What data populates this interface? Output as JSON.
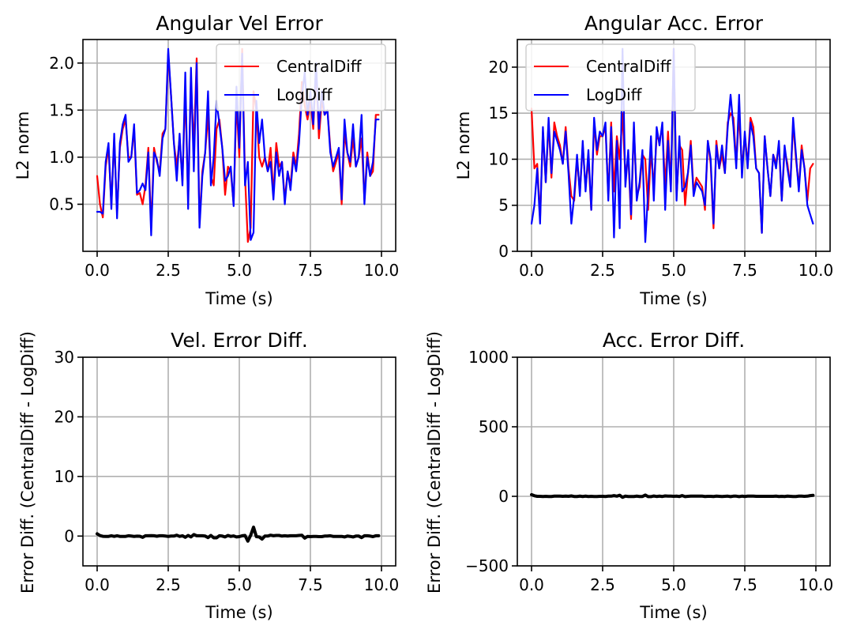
{
  "chart_data": [
    {
      "type": "line",
      "title": "Angular Vel Error",
      "xlabel": "Time (s)",
      "ylabel": "L2 norm",
      "xlim": [
        -0.5,
        10.5
      ],
      "ylim": [
        0.0,
        2.25
      ],
      "xticks": [
        0.0,
        2.5,
        5.0,
        7.5,
        10.0
      ],
      "xtick_labels": [
        "0.0",
        "2.5",
        "5.0",
        "7.5",
        "10.0"
      ],
      "yticks": [
        0.5,
        1.0,
        1.5,
        2.0
      ],
      "ytick_labels": [
        "0.5",
        "1.0",
        "1.5",
        "2.0"
      ],
      "grid": true,
      "legend": "top-right",
      "x": [
        0.0,
        0.1,
        0.2,
        0.3,
        0.4,
        0.5,
        0.6,
        0.7,
        0.8,
        0.9,
        1.0,
        1.1,
        1.2,
        1.3,
        1.4,
        1.5,
        1.6,
        1.7,
        1.8,
        1.9,
        2.0,
        2.1,
        2.2,
        2.3,
        2.4,
        2.5,
        2.6,
        2.7,
        2.8,
        2.9,
        3.0,
        3.1,
        3.2,
        3.3,
        3.4,
        3.5,
        3.6,
        3.7,
        3.8,
        3.9,
        4.0,
        4.1,
        4.2,
        4.3,
        4.4,
        4.5,
        4.6,
        4.7,
        4.8,
        4.9,
        5.0,
        5.1,
        5.2,
        5.3,
        5.4,
        5.5,
        5.6,
        5.7,
        5.8,
        5.9,
        6.0,
        6.1,
        6.2,
        6.3,
        6.4,
        6.5,
        6.6,
        6.7,
        6.8,
        6.9,
        7.0,
        7.1,
        7.2,
        7.3,
        7.4,
        7.5,
        7.6,
        7.7,
        7.8,
        7.9,
        8.0,
        8.1,
        8.2,
        8.3,
        8.4,
        8.5,
        8.6,
        8.7,
        8.8,
        8.9,
        9.0,
        9.1,
        9.2,
        9.3,
        9.4,
        9.5,
        9.6,
        9.7,
        9.8,
        9.9
      ],
      "series": [
        {
          "name": "CentralDiff",
          "color": "#ff0000",
          "values": [
            0.8,
            0.5,
            0.36,
            0.9,
            1.1,
            0.5,
            1.2,
            0.4,
            1.1,
            1.3,
            1.4,
            1.0,
            1.0,
            1.3,
            0.6,
            0.62,
            0.5,
            0.7,
            1.1,
            0.25,
            1.1,
            0.95,
            0.85,
            1.25,
            1.3,
            2.1,
            1.65,
            1.15,
            0.9,
            1.2,
            0.75,
            1.7,
            0.55,
            1.8,
            1.1,
            2.05,
            0.3,
            0.85,
            1.05,
            1.45,
            0.8,
            0.7,
            1.3,
            1.4,
            1.1,
            0.6,
            0.9,
            0.85,
            0.5,
            1.6,
            1.0,
            2.15,
            0.8,
            0.1,
            0.25,
            1.7,
            1.5,
            1.0,
            0.9,
            1.0,
            0.85,
            1.1,
            0.6,
            1.15,
            0.9,
            0.95,
            0.55,
            0.85,
            0.7,
            1.05,
            0.9,
            1.25,
            1.8,
            1.55,
            1.4,
            1.6,
            1.3,
            1.95,
            1.2,
            1.6,
            1.45,
            1.5,
            1.1,
            0.85,
            0.95,
            1.05,
            0.5,
            1.25,
            1.05,
            0.9,
            1.2,
            0.9,
            1.0,
            1.2,
            0.55,
            1.05,
            0.8,
            0.85,
            1.45,
            1.45
          ]
        },
        {
          "name": "LogDiff",
          "color": "#0000ff",
          "values": [
            0.42,
            0.42,
            0.4,
            0.95,
            1.15,
            0.45,
            1.25,
            0.35,
            1.15,
            1.35,
            1.45,
            0.95,
            1.0,
            1.35,
            0.62,
            0.65,
            0.72,
            0.65,
            1.05,
            0.17,
            1.05,
            0.98,
            0.8,
            1.2,
            1.3,
            2.15,
            1.65,
            1.15,
            0.75,
            1.25,
            0.7,
            1.9,
            0.45,
            1.95,
            0.85,
            2.0,
            0.25,
            0.8,
            1.05,
            1.7,
            0.7,
            1.0,
            1.6,
            1.35,
            1.1,
            0.75,
            0.8,
            0.9,
            0.48,
            1.75,
            1.1,
            2.1,
            0.7,
            0.95,
            0.12,
            0.2,
            1.6,
            1.15,
            1.4,
            1.0,
            0.85,
            0.95,
            0.55,
            1.05,
            0.8,
            0.95,
            0.5,
            0.85,
            0.65,
            1.0,
            0.85,
            1.15,
            1.65,
            1.9,
            1.45,
            1.7,
            1.35,
            2.0,
            1.3,
            1.7,
            1.45,
            1.5,
            1.05,
            0.9,
            1.0,
            1.1,
            0.55,
            1.4,
            1.05,
            0.95,
            1.35,
            0.9,
            1.0,
            1.45,
            0.5,
            1.0,
            0.8,
            0.95,
            1.4,
            1.4
          ]
        }
      ]
    },
    {
      "type": "line",
      "title": "Angular Acc. Error",
      "xlabel": "Time (s)",
      "ylabel": "L2 norm",
      "xlim": [
        -0.5,
        10.5
      ],
      "ylim": [
        0,
        23
      ],
      "xticks": [
        0.0,
        2.5,
        5.0,
        7.5,
        10.0
      ],
      "xtick_labels": [
        "0.0",
        "2.5",
        "5.0",
        "7.5",
        "10.0"
      ],
      "yticks": [
        0,
        5,
        10,
        15,
        20
      ],
      "ytick_labels": [
        "0",
        "5",
        "10",
        "15",
        "20"
      ],
      "grid": true,
      "legend": "top-left",
      "x": [
        0.0,
        0.1,
        0.2,
        0.3,
        0.4,
        0.5,
        0.6,
        0.7,
        0.8,
        0.9,
        1.0,
        1.1,
        1.2,
        1.3,
        1.4,
        1.5,
        1.6,
        1.7,
        1.8,
        1.9,
        2.0,
        2.1,
        2.2,
        2.3,
        2.4,
        2.5,
        2.6,
        2.7,
        2.8,
        2.9,
        3.0,
        3.1,
        3.2,
        3.3,
        3.4,
        3.5,
        3.6,
        3.7,
        3.8,
        3.9,
        4.0,
        4.1,
        4.2,
        4.3,
        4.4,
        4.5,
        4.6,
        4.7,
        4.8,
        4.9,
        5.0,
        5.1,
        5.2,
        5.3,
        5.4,
        5.5,
        5.6,
        5.7,
        5.8,
        5.9,
        6.0,
        6.1,
        6.2,
        6.3,
        6.4,
        6.5,
        6.6,
        6.7,
        6.8,
        6.9,
        7.0,
        7.1,
        7.2,
        7.3,
        7.4,
        7.5,
        7.6,
        7.7,
        7.8,
        7.9,
        8.0,
        8.1,
        8.2,
        8.3,
        8.4,
        8.5,
        8.6,
        8.7,
        8.8,
        8.9,
        9.0,
        9.1,
        9.2,
        9.3,
        9.4,
        9.5,
        9.6,
        9.7,
        9.8,
        9.9
      ],
      "series": [
        {
          "name": "CentralDiff",
          "color": "#ff0000",
          "values": [
            15.5,
            9.0,
            9.5,
            3.5,
            13.0,
            7.5,
            14.0,
            8.0,
            14.0,
            12.5,
            11.5,
            9.5,
            13.5,
            9.0,
            6.0,
            5.5,
            10.0,
            6.5,
            11.5,
            7.0,
            10.0,
            4.5,
            14.0,
            10.5,
            12.5,
            12.5,
            13.5,
            6.0,
            14.0,
            6.5,
            12.5,
            10.0,
            15.0,
            8.0,
            10.5,
            3.5,
            13.5,
            6.0,
            7.0,
            10.5,
            10.0,
            4.5,
            11.0,
            7.0,
            12.5,
            12.0,
            13.5,
            7.0,
            13.0,
            7.0,
            22.0,
            6.0,
            11.5,
            11.0,
            5.0,
            8.5,
            12.0,
            6.5,
            8.0,
            7.5,
            7.0,
            4.5,
            12.0,
            9.5,
            2.5,
            12.0,
            9.0,
            10.5,
            8.5,
            14.0,
            15.0,
            14.5,
            9.5,
            15.0,
            9.0,
            12.5,
            9.5,
            14.5,
            13.5,
            9.0,
            8.5,
            2.0,
            12.5,
            9.0,
            6.0,
            10.5,
            9.5,
            11.5,
            5.5,
            11.0,
            9.5,
            7.0,
            14.0,
            10.0,
            7.0,
            11.5,
            9.0,
            5.5,
            9.0,
            9.5
          ]
        },
        {
          "name": "LogDiff",
          "color": "#0000ff",
          "values": [
            3.0,
            5.0,
            9.0,
            3.0,
            13.5,
            7.5,
            14.5,
            8.5,
            13.0,
            12.0,
            11.0,
            9.5,
            13.0,
            8.5,
            3.0,
            6.0,
            10.5,
            6.0,
            12.0,
            6.5,
            11.0,
            4.5,
            14.5,
            11.0,
            13.0,
            12.5,
            14.0,
            5.5,
            13.5,
            1.5,
            12.0,
            2.5,
            22.0,
            7.0,
            11.0,
            4.0,
            14.0,
            5.5,
            7.5,
            11.0,
            1.0,
            6.5,
            12.5,
            5.5,
            13.5,
            11.5,
            14.0,
            4.5,
            12.0,
            6.5,
            22.0,
            5.5,
            12.5,
            6.5,
            7.0,
            8.5,
            11.5,
            6.0,
            7.5,
            7.0,
            6.5,
            5.0,
            12.0,
            10.0,
            3.0,
            11.5,
            9.0,
            11.5,
            8.5,
            13.5,
            17.0,
            13.5,
            9.0,
            17.0,
            8.0,
            13.0,
            9.0,
            14.0,
            12.5,
            9.0,
            8.5,
            2.0,
            12.5,
            9.0,
            6.0,
            10.5,
            9.0,
            12.0,
            5.5,
            11.5,
            9.0,
            7.0,
            14.5,
            10.5,
            6.5,
            11.0,
            9.0,
            5.0,
            4.0,
            3.0
          ]
        }
      ]
    },
    {
      "type": "line",
      "title": "Vel. Error Diff.",
      "xlabel": "Time (s)",
      "ylabel": "Error Diff. (CentralDiff - LogDiff)",
      "xlim": [
        -0.5,
        10.5
      ],
      "ylim": [
        -5,
        30
      ],
      "xticks": [
        0.0,
        2.5,
        5.0,
        7.5,
        10.0
      ],
      "xtick_labels": [
        "0.0",
        "2.5",
        "5.0",
        "7.5",
        "10.0"
      ],
      "yticks": [
        0,
        10,
        20,
        30
      ],
      "ytick_labels": [
        "0",
        "10",
        "20",
        "30"
      ],
      "grid": true,
      "x": [
        0.0,
        0.1,
        0.2,
        0.3,
        0.4,
        0.5,
        0.6,
        0.7,
        0.8,
        0.9,
        1.0,
        1.1,
        1.2,
        1.3,
        1.4,
        1.5,
        1.6,
        1.7,
        1.8,
        1.9,
        2.0,
        2.1,
        2.2,
        2.3,
        2.4,
        2.5,
        2.6,
        2.7,
        2.8,
        2.9,
        3.0,
        3.1,
        3.2,
        3.3,
        3.4,
        3.5,
        3.6,
        3.7,
        3.8,
        3.9,
        4.0,
        4.1,
        4.2,
        4.3,
        4.4,
        4.5,
        4.6,
        4.7,
        4.8,
        4.9,
        5.0,
        5.1,
        5.2,
        5.3,
        5.4,
        5.5,
        5.6,
        5.7,
        5.8,
        5.9,
        6.0,
        6.1,
        6.2,
        6.3,
        6.4,
        6.5,
        6.6,
        6.7,
        6.8,
        6.9,
        7.0,
        7.1,
        7.2,
        7.3,
        7.4,
        7.5,
        7.6,
        7.7,
        7.8,
        7.9,
        8.0,
        8.1,
        8.2,
        8.3,
        8.4,
        8.5,
        8.6,
        8.7,
        8.8,
        8.9,
        9.0,
        9.1,
        9.2,
        9.3,
        9.4,
        9.5,
        9.6,
        9.7,
        9.8,
        9.9
      ],
      "series": [
        {
          "name": "CentralDiff - LogDiff",
          "color": "#000000",
          "values": [
            0.38,
            0.08,
            -0.04,
            -0.05,
            -0.05,
            0.05,
            -0.05,
            0.05,
            -0.05,
            -0.05,
            -0.05,
            0.05,
            0.0,
            -0.05,
            -0.02,
            -0.03,
            -0.22,
            0.05,
            0.05,
            0.08,
            0.05,
            -0.03,
            0.05,
            0.05,
            0.0,
            -0.05,
            0.0,
            0.0,
            0.15,
            -0.05,
            0.05,
            -0.2,
            0.1,
            -0.15,
            0.25,
            0.05,
            0.05,
            0.05,
            0.0,
            -0.25,
            0.1,
            -0.3,
            -0.3,
            0.05,
            0.0,
            -0.15,
            0.1,
            -0.05,
            0.02,
            -0.15,
            -0.1,
            0.05,
            0.1,
            -0.85,
            0.13,
            1.5,
            -0.1,
            -0.15,
            -0.5,
            0.0,
            0.0,
            0.15,
            0.05,
            0.1,
            0.1,
            0.0,
            0.05,
            0.0,
            0.05,
            0.05,
            0.05,
            0.1,
            0.15,
            -0.35,
            -0.05,
            -0.1,
            -0.05,
            -0.05,
            -0.1,
            -0.1,
            0.0,
            0.0,
            0.05,
            -0.05,
            -0.05,
            -0.05,
            -0.05,
            -0.15,
            0.0,
            -0.05,
            -0.15,
            0.0,
            0.0,
            -0.25,
            0.05,
            0.05,
            0.0,
            -0.1,
            0.05,
            0.05
          ]
        }
      ]
    },
    {
      "type": "line",
      "title": "Acc. Error Diff.",
      "xlabel": "Time (s)",
      "ylabel": "Error Diff. (CentralDiff - LogDiff)",
      "xlim": [
        -0.5,
        10.5
      ],
      "ylim": [
        -500,
        1000
      ],
      "xticks": [
        0.0,
        2.5,
        5.0,
        7.5,
        10.0
      ],
      "xtick_labels": [
        "0.0",
        "2.5",
        "5.0",
        "7.5",
        "10.0"
      ],
      "yticks": [
        -500,
        0,
        500,
        1000
      ],
      "ytick_labels": [
        "−500",
        "0",
        "500",
        "1000"
      ],
      "grid": true,
      "x": [
        0.0,
        0.1,
        0.2,
        0.3,
        0.4,
        0.5,
        0.6,
        0.7,
        0.8,
        0.9,
        1.0,
        1.1,
        1.2,
        1.3,
        1.4,
        1.5,
        1.6,
        1.7,
        1.8,
        1.9,
        2.0,
        2.1,
        2.2,
        2.3,
        2.4,
        2.5,
        2.6,
        2.7,
        2.8,
        2.9,
        3.0,
        3.1,
        3.2,
        3.3,
        3.4,
        3.5,
        3.6,
        3.7,
        3.8,
        3.9,
        4.0,
        4.1,
        4.2,
        4.3,
        4.4,
        4.5,
        4.6,
        4.7,
        4.8,
        4.9,
        5.0,
        5.1,
        5.2,
        5.3,
        5.4,
        5.5,
        5.6,
        5.7,
        5.8,
        5.9,
        6.0,
        6.1,
        6.2,
        6.3,
        6.4,
        6.5,
        6.6,
        6.7,
        6.8,
        6.9,
        7.0,
        7.1,
        7.2,
        7.3,
        7.4,
        7.5,
        7.6,
        7.7,
        7.8,
        7.9,
        8.0,
        8.1,
        8.2,
        8.3,
        8.4,
        8.5,
        8.6,
        8.7,
        8.8,
        8.9,
        9.0,
        9.1,
        9.2,
        9.3,
        9.4,
        9.5,
        9.6,
        9.7,
        9.8,
        9.9
      ],
      "series": [
        {
          "name": "CentralDiff - LogDiff",
          "color": "#000000",
          "values": [
            12,
            4,
            0,
            0,
            -1,
            0,
            -1,
            -1,
            1,
            1,
            1,
            0,
            1,
            0,
            3,
            -1,
            -1,
            1,
            -1,
            1,
            -1,
            0,
            -1,
            -1,
            0,
            0,
            -1,
            1,
            1,
            5,
            1,
            8,
            -7,
            1,
            -1,
            -1,
            -1,
            1,
            -1,
            -1,
            9,
            -2,
            -2,
            2,
            -1,
            1,
            -1,
            3,
            1,
            1,
            0,
            1,
            -1,
            5,
            -2,
            0,
            1,
            1,
            1,
            1,
            1,
            -1,
            0,
            0,
            -1,
            1,
            0,
            -1,
            0,
            1,
            -2,
            1,
            1,
            -2,
            1,
            -1,
            1,
            1,
            1,
            0,
            0,
            0,
            0,
            0,
            0,
            0,
            1,
            -1,
            0,
            -1,
            1,
            0,
            -1,
            -1,
            1,
            1,
            0,
            1,
            5,
            7
          ]
        }
      ]
    }
  ]
}
